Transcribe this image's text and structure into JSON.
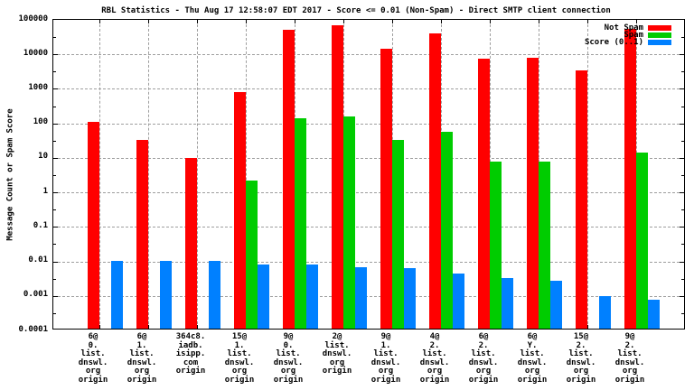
{
  "colors": {
    "not_spam": "#ff0000",
    "spam": "#00cc00",
    "score": "#0080ff",
    "grid": "#9e9e9e",
    "axis": "#000000"
  },
  "chart_data": {
    "type": "bar",
    "title": "RBL Statistics - Thu Aug 17 12:58:07 EDT 2017 - Score <= 0.01 (Non-Spam) - Direct SMTP client connection",
    "xlabel": "",
    "ylabel": "Message Count or Spam Score",
    "y_scale": "log",
    "ylim": [
      0.0001,
      100000
    ],
    "y_ticks": [
      "100000",
      "10000",
      "1000",
      "100",
      "10",
      "1",
      "0.1",
      "0.01",
      "0.001",
      "0.0001"
    ],
    "grid": true,
    "legend_position": "top-right-inside",
    "categories": [
      [
        "6@",
        "0.",
        "list.",
        "dnswl.",
        "org",
        "origin"
      ],
      [
        "6@",
        "1.",
        "list.",
        "dnswl.",
        "org",
        "origin"
      ],
      [
        "364c8.",
        "iadb.",
        "isipp.",
        "com",
        "origin"
      ],
      [
        "15@",
        "1.",
        "list.",
        "dnswl.",
        "org",
        "origin"
      ],
      [
        "9@",
        "0.",
        "list.",
        "dnswl.",
        "org",
        "origin"
      ],
      [
        "2@",
        "list.",
        "dnswl.",
        "org",
        "origin"
      ],
      [
        "9@",
        "1.",
        "list.",
        "dnswl.",
        "org",
        "origin"
      ],
      [
        "4@",
        "2.",
        "list.",
        "dnswl.",
        "org",
        "origin"
      ],
      [
        "6@",
        "2.",
        "list.",
        "dnswl.",
        "org",
        "origin"
      ],
      [
        "6@",
        "Y.",
        "list.",
        "dnswl.",
        "org",
        "origin"
      ],
      [
        "15@",
        "2.",
        "list.",
        "dnswl.",
        "org",
        "origin"
      ],
      [
        "9@",
        "2.",
        "list.",
        "dnswl.",
        "org",
        "origin"
      ]
    ],
    "series": [
      {
        "name": "Not Spam",
        "color_key": "not_spam",
        "values": [
          100,
          30,
          9,
          700,
          45000,
          60000,
          13000,
          35000,
          6500,
          7000,
          3000,
          50000
        ]
      },
      {
        "name": "Spam",
        "color_key": "spam",
        "values": [
          0,
          0,
          0,
          2,
          125,
          140,
          30,
          50,
          7,
          7,
          0,
          13
        ]
      },
      {
        "name": "Score (0..1)",
        "color_key": "score",
        "values": [
          0.009,
          0.009,
          0.009,
          0.007,
          0.007,
          0.006,
          0.0055,
          0.004,
          0.003,
          0.0025,
          0.0009,
          0.0007
        ]
      }
    ]
  }
}
